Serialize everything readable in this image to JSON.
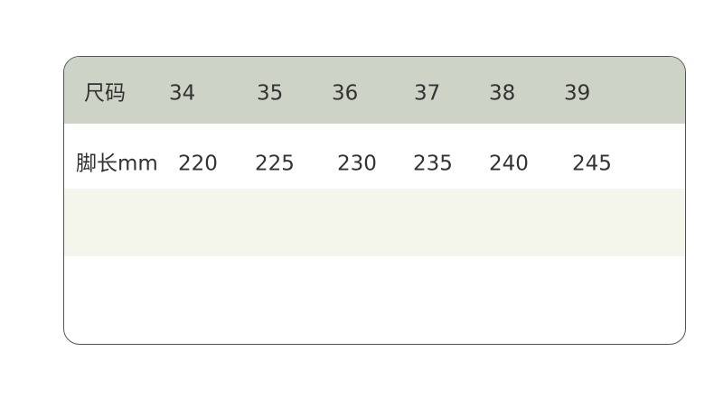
{
  "table": {
    "header": {
      "label": "尺码",
      "values": [
        "34",
        "35",
        "36",
        "37",
        "38",
        "39"
      ]
    },
    "row": {
      "label": "脚长mm",
      "values": [
        "220",
        "225",
        "230",
        "235",
        "240",
        "245"
      ]
    },
    "colors": {
      "header_bg": "#cdd3c6",
      "empty_row_bg": "#f4f6ec",
      "border": "#555555",
      "text": "#333333"
    }
  }
}
